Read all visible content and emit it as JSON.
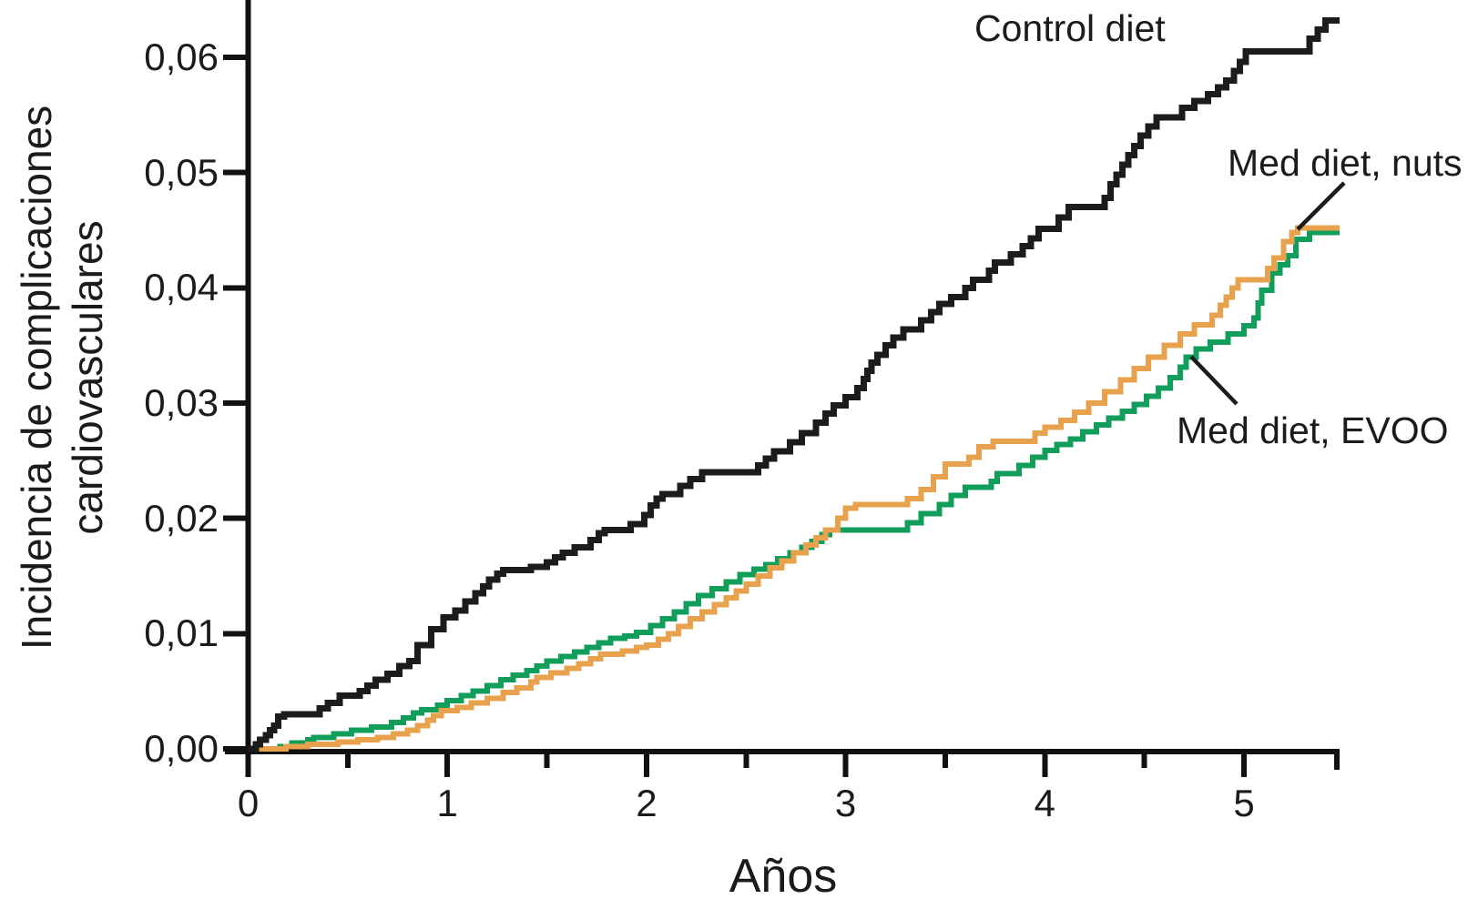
{
  "chart_data": {
    "type": "line",
    "subtype": "step",
    "title": "",
    "xlabel": "Años",
    "ylabel": "Incidencia de complicaciones cardiovasculares",
    "ylabel_lines": [
      "Incidencia de complicaciones",
      "cardiovasculares"
    ],
    "xlim": [
      0,
      5.48
    ],
    "ylim": [
      0,
      0.066
    ],
    "grid": false,
    "legend_position": "inline-annotations",
    "axis_color": "#111111",
    "x_ticks": {
      "major": [
        0,
        1,
        2,
        3,
        4,
        5
      ],
      "labels": [
        "0",
        "1",
        "2",
        "3",
        "4",
        "5"
      ],
      "minor": [
        0.5,
        1.5,
        2.5,
        3.5,
        4.5
      ],
      "axis_end_tick": 5.48
    },
    "y_ticks": {
      "values": [
        0,
        0.01,
        0.02,
        0.03,
        0.04,
        0.05,
        0.06
      ],
      "labels": [
        "0,00",
        "0,01",
        "0,02",
        "0,03",
        "0,04",
        "0,05",
        "0,06"
      ]
    },
    "series": [
      {
        "name": "Control diet",
        "color": "#1c1c1c",
        "stroke_width": 7,
        "points": [
          [
            0.0,
            0.0
          ],
          [
            0.04,
            0.0004
          ],
          [
            0.06,
            0.0008
          ],
          [
            0.09,
            0.0012
          ],
          [
            0.11,
            0.0016
          ],
          [
            0.13,
            0.002
          ],
          [
            0.15,
            0.0028
          ],
          [
            0.18,
            0.003
          ],
          [
            0.36,
            0.0035
          ],
          [
            0.4,
            0.004
          ],
          [
            0.46,
            0.0046
          ],
          [
            0.56,
            0.005
          ],
          [
            0.6,
            0.0055
          ],
          [
            0.64,
            0.006
          ],
          [
            0.7,
            0.0065
          ],
          [
            0.76,
            0.0072
          ],
          [
            0.81,
            0.0076
          ],
          [
            0.85,
            0.009
          ],
          [
            0.92,
            0.0104
          ],
          [
            0.98,
            0.0114
          ],
          [
            1.04,
            0.012
          ],
          [
            1.09,
            0.0128
          ],
          [
            1.14,
            0.0135
          ],
          [
            1.18,
            0.0141
          ],
          [
            1.21,
            0.0147
          ],
          [
            1.25,
            0.0152
          ],
          [
            1.28,
            0.0155
          ],
          [
            1.42,
            0.0158
          ],
          [
            1.5,
            0.0162
          ],
          [
            1.54,
            0.0166
          ],
          [
            1.58,
            0.017
          ],
          [
            1.64,
            0.0175
          ],
          [
            1.72,
            0.0181
          ],
          [
            1.76,
            0.0187
          ],
          [
            1.79,
            0.019
          ],
          [
            1.92,
            0.0195
          ],
          [
            1.99,
            0.0203
          ],
          [
            2.02,
            0.0211
          ],
          [
            2.05,
            0.0217
          ],
          [
            2.08,
            0.0221
          ],
          [
            2.17,
            0.0228
          ],
          [
            2.22,
            0.0234
          ],
          [
            2.28,
            0.024
          ],
          [
            2.56,
            0.0246
          ],
          [
            2.6,
            0.0252
          ],
          [
            2.64,
            0.0258
          ],
          [
            2.72,
            0.0266
          ],
          [
            2.78,
            0.0274
          ],
          [
            2.85,
            0.0283
          ],
          [
            2.9,
            0.0291
          ],
          [
            2.94,
            0.0298
          ],
          [
            3.0,
            0.0305
          ],
          [
            3.06,
            0.0313
          ],
          [
            3.09,
            0.0321
          ],
          [
            3.11,
            0.0328
          ],
          [
            3.13,
            0.0335
          ],
          [
            3.16,
            0.0342
          ],
          [
            3.2,
            0.035
          ],
          [
            3.24,
            0.0357
          ],
          [
            3.29,
            0.0364
          ],
          [
            3.38,
            0.0372
          ],
          [
            3.43,
            0.0379
          ],
          [
            3.47,
            0.0386
          ],
          [
            3.53,
            0.0392
          ],
          [
            3.6,
            0.04
          ],
          [
            3.64,
            0.0407
          ],
          [
            3.72,
            0.0415
          ],
          [
            3.75,
            0.0422
          ],
          [
            3.83,
            0.0429
          ],
          [
            3.89,
            0.0436
          ],
          [
            3.93,
            0.0443
          ],
          [
            3.97,
            0.0451
          ],
          [
            4.07,
            0.0461
          ],
          [
            4.12,
            0.047
          ],
          [
            4.3,
            0.0478
          ],
          [
            4.33,
            0.049
          ],
          [
            4.36,
            0.0498
          ],
          [
            4.39,
            0.0507
          ],
          [
            4.42,
            0.0515
          ],
          [
            4.45,
            0.0523
          ],
          [
            4.48,
            0.0532
          ],
          [
            4.52,
            0.054
          ],
          [
            4.56,
            0.0548
          ],
          [
            4.69,
            0.0556
          ],
          [
            4.75,
            0.0562
          ],
          [
            4.82,
            0.0568
          ],
          [
            4.87,
            0.0574
          ],
          [
            4.91,
            0.058
          ],
          [
            4.95,
            0.0588
          ],
          [
            4.98,
            0.0596
          ],
          [
            5.01,
            0.0605
          ],
          [
            5.33,
            0.0616
          ],
          [
            5.37,
            0.0624
          ],
          [
            5.41,
            0.0632
          ],
          [
            5.48,
            0.0632
          ]
        ]
      },
      {
        "name": "Med diet, nuts",
        "color": "#e8a24d",
        "stroke_width": 6,
        "points": [
          [
            0.0,
            0.0
          ],
          [
            0.19,
            0.0002
          ],
          [
            0.3,
            0.0004
          ],
          [
            0.45,
            0.0006
          ],
          [
            0.55,
            0.0008
          ],
          [
            0.65,
            0.001
          ],
          [
            0.73,
            0.0013
          ],
          [
            0.8,
            0.0016
          ],
          [
            0.85,
            0.002
          ],
          [
            0.9,
            0.0025
          ],
          [
            0.93,
            0.0029
          ],
          [
            0.97,
            0.0033
          ],
          [
            1.05,
            0.0036
          ],
          [
            1.12,
            0.004
          ],
          [
            1.2,
            0.0044
          ],
          [
            1.28,
            0.0049
          ],
          [
            1.35,
            0.0053
          ],
          [
            1.42,
            0.0058
          ],
          [
            1.45,
            0.0062
          ],
          [
            1.52,
            0.0066
          ],
          [
            1.6,
            0.007
          ],
          [
            1.66,
            0.0074
          ],
          [
            1.72,
            0.0078
          ],
          [
            1.77,
            0.0082
          ],
          [
            1.88,
            0.0085
          ],
          [
            1.95,
            0.0088
          ],
          [
            2.0,
            0.009
          ],
          [
            2.06,
            0.0095
          ],
          [
            2.11,
            0.01
          ],
          [
            2.16,
            0.0106
          ],
          [
            2.22,
            0.0113
          ],
          [
            2.28,
            0.0119
          ],
          [
            2.34,
            0.0125
          ],
          [
            2.4,
            0.0131
          ],
          [
            2.45,
            0.0137
          ],
          [
            2.5,
            0.0143
          ],
          [
            2.56,
            0.015
          ],
          [
            2.62,
            0.0157
          ],
          [
            2.68,
            0.0163
          ],
          [
            2.74,
            0.017
          ],
          [
            2.8,
            0.0177
          ],
          [
            2.85,
            0.0183
          ],
          [
            2.9,
            0.019
          ],
          [
            2.96,
            0.02
          ],
          [
            3.0,
            0.0209
          ],
          [
            3.05,
            0.0212
          ],
          [
            3.31,
            0.0217
          ],
          [
            3.38,
            0.0225
          ],
          [
            3.44,
            0.0236
          ],
          [
            3.5,
            0.0247
          ],
          [
            3.62,
            0.0253
          ],
          [
            3.67,
            0.0262
          ],
          [
            3.74,
            0.0267
          ],
          [
            3.95,
            0.0274
          ],
          [
            4.0,
            0.0279
          ],
          [
            4.08,
            0.0285
          ],
          [
            4.15,
            0.0292
          ],
          [
            4.22,
            0.03
          ],
          [
            4.3,
            0.031
          ],
          [
            4.38,
            0.032
          ],
          [
            4.45,
            0.033
          ],
          [
            4.52,
            0.034
          ],
          [
            4.6,
            0.035
          ],
          [
            4.68,
            0.036
          ],
          [
            4.75,
            0.0368
          ],
          [
            4.84,
            0.0376
          ],
          [
            4.88,
            0.0385
          ],
          [
            4.91,
            0.0392
          ],
          [
            4.94,
            0.04
          ],
          [
            4.97,
            0.0407
          ],
          [
            5.12,
            0.0417
          ],
          [
            5.15,
            0.0426
          ],
          [
            5.2,
            0.044
          ],
          [
            5.24,
            0.0448
          ],
          [
            5.27,
            0.0452
          ],
          [
            5.48,
            0.0452
          ]
        ]
      },
      {
        "name": "Med diet, EVOO",
        "color": "#119e5a",
        "stroke_width": 6,
        "points": [
          [
            0.0,
            0.0
          ],
          [
            0.16,
            0.0002
          ],
          [
            0.22,
            0.0005
          ],
          [
            0.3,
            0.0008
          ],
          [
            0.33,
            0.001
          ],
          [
            0.43,
            0.0013
          ],
          [
            0.52,
            0.0016
          ],
          [
            0.62,
            0.0019
          ],
          [
            0.72,
            0.0023
          ],
          [
            0.78,
            0.0027
          ],
          [
            0.83,
            0.0031
          ],
          [
            0.87,
            0.0034
          ],
          [
            0.95,
            0.0038
          ],
          [
            1.0,
            0.0042
          ],
          [
            1.07,
            0.0046
          ],
          [
            1.13,
            0.005
          ],
          [
            1.2,
            0.0055
          ],
          [
            1.27,
            0.006
          ],
          [
            1.33,
            0.0064
          ],
          [
            1.4,
            0.0068
          ],
          [
            1.45,
            0.0072
          ],
          [
            1.5,
            0.0076
          ],
          [
            1.57,
            0.008
          ],
          [
            1.64,
            0.0084
          ],
          [
            1.7,
            0.0088
          ],
          [
            1.76,
            0.0092
          ],
          [
            1.82,
            0.0096
          ],
          [
            1.89,
            0.0098
          ],
          [
            1.95,
            0.0101
          ],
          [
            2.02,
            0.0107
          ],
          [
            2.08,
            0.0113
          ],
          [
            2.14,
            0.0119
          ],
          [
            2.2,
            0.0126
          ],
          [
            2.26,
            0.0133
          ],
          [
            2.33,
            0.0139
          ],
          [
            2.4,
            0.0145
          ],
          [
            2.47,
            0.0151
          ],
          [
            2.54,
            0.0156
          ],
          [
            2.6,
            0.016
          ],
          [
            2.66,
            0.0165
          ],
          [
            2.72,
            0.017
          ],
          [
            2.78,
            0.0175
          ],
          [
            2.83,
            0.018
          ],
          [
            2.88,
            0.0186
          ],
          [
            2.92,
            0.019
          ],
          [
            3.31,
            0.0196
          ],
          [
            3.38,
            0.0204
          ],
          [
            3.47,
            0.0212
          ],
          [
            3.53,
            0.022
          ],
          [
            3.6,
            0.0227
          ],
          [
            3.73,
            0.0232
          ],
          [
            3.76,
            0.0239
          ],
          [
            3.87,
            0.0246
          ],
          [
            3.94,
            0.0253
          ],
          [
            4.0,
            0.0259
          ],
          [
            4.06,
            0.0264
          ],
          [
            4.13,
            0.0269
          ],
          [
            4.19,
            0.0275
          ],
          [
            4.26,
            0.0281
          ],
          [
            4.32,
            0.0287
          ],
          [
            4.39,
            0.0293
          ],
          [
            4.45,
            0.0299
          ],
          [
            4.51,
            0.0306
          ],
          [
            4.57,
            0.0313
          ],
          [
            4.63,
            0.0322
          ],
          [
            4.68,
            0.0331
          ],
          [
            4.71,
            0.034
          ],
          [
            4.76,
            0.0347
          ],
          [
            4.83,
            0.0353
          ],
          [
            4.92,
            0.036
          ],
          [
            5.0,
            0.0367
          ],
          [
            5.05,
            0.0374
          ],
          [
            5.07,
            0.0387
          ],
          [
            5.09,
            0.0398
          ],
          [
            5.14,
            0.0413
          ],
          [
            5.18,
            0.042
          ],
          [
            5.22,
            0.0428
          ],
          [
            5.26,
            0.0442
          ],
          [
            5.33,
            0.0448
          ],
          [
            5.48,
            0.0448
          ]
        ]
      }
    ],
    "annotations": [
      {
        "text": "Control diet",
        "target_series": "Control diet",
        "has_pointer_line": false
      },
      {
        "text": "Med diet, nuts",
        "target_series": "Med diet, nuts",
        "has_pointer_line": true
      },
      {
        "text": "Med diet, EVOO",
        "target_series": "Med diet, EVOO",
        "has_pointer_line": true
      }
    ]
  }
}
